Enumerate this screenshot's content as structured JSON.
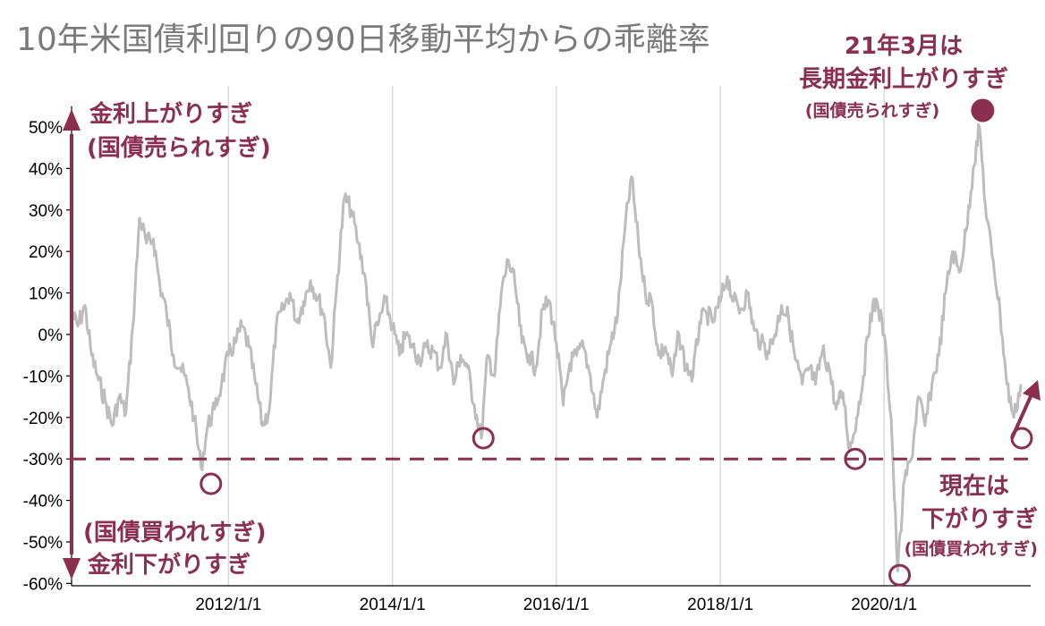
{
  "colors": {
    "series": "#bdbdbd",
    "accent": "#8b2f50",
    "grid": "#d9d9d9",
    "axis": "#000000",
    "title": "#7a7a7a"
  },
  "chart_data": {
    "type": "line",
    "title": "10年米国債利回りの90日移動平均からの乖離率",
    "xlabel": "",
    "ylabel": "",
    "xlim": [
      "2010-02-01",
      "2021-10-15"
    ],
    "ylim": [
      -60,
      55
    ],
    "y_ticks": [
      50,
      40,
      30,
      20,
      10,
      0,
      -10,
      -20,
      -30,
      -40,
      -50,
      -60
    ],
    "y_tick_labels": [
      "50%",
      "40%",
      "30%",
      "20%",
      "10%",
      "0%",
      "-10%",
      "-20%",
      "-30%",
      "-40%",
      "-50%",
      "-60%"
    ],
    "x_ticks": [
      "2012-01-01",
      "2014-01-01",
      "2016-01-01",
      "2018-01-01",
      "2020-01-01"
    ],
    "x_tick_labels": [
      "2012/1/1",
      "2014/1/1",
      "2016/1/1",
      "2018/1/1",
      "2020/1/1"
    ],
    "grid": "vertical",
    "reference_line": {
      "value": -30,
      "style": "dashed"
    },
    "series": [
      {
        "values": [
          [
            "2010-02-01",
            5
          ],
          [
            "2010-03-01",
            2
          ],
          [
            "2010-04-01",
            7
          ],
          [
            "2010-05-01",
            -5
          ],
          [
            "2010-06-01",
            -11
          ],
          [
            "2010-07-01",
            -16
          ],
          [
            "2010-08-01",
            -22
          ],
          [
            "2010-09-01",
            -15
          ],
          [
            "2010-10-01",
            -19
          ],
          [
            "2010-11-01",
            2
          ],
          [
            "2010-12-01",
            28
          ],
          [
            "2011-01-01",
            22
          ],
          [
            "2011-02-01",
            23
          ],
          [
            "2011-03-01",
            12
          ],
          [
            "2011-04-01",
            5
          ],
          [
            "2011-05-01",
            -5
          ],
          [
            "2011-06-01",
            -8
          ],
          [
            "2011-07-01",
            -12
          ],
          [
            "2011-08-01",
            -20
          ],
          [
            "2011-09-01",
            -32
          ],
          [
            "2011-10-01",
            -22
          ],
          [
            "2011-11-01",
            -18
          ],
          [
            "2011-12-01",
            -12
          ],
          [
            "2012-01-01",
            -5
          ],
          [
            "2012-02-01",
            -2
          ],
          [
            "2012-03-01",
            2
          ],
          [
            "2012-04-01",
            -3
          ],
          [
            "2012-05-01",
            -12
          ],
          [
            "2012-06-01",
            -22
          ],
          [
            "2012-07-01",
            -18
          ],
          [
            "2012-08-01",
            2
          ],
          [
            "2012-09-01",
            6
          ],
          [
            "2012-10-01",
            10
          ],
          [
            "2012-11-01",
            3
          ],
          [
            "2012-12-01",
            8
          ],
          [
            "2013-01-01",
            13
          ],
          [
            "2013-02-01",
            9
          ],
          [
            "2013-03-01",
            5
          ],
          [
            "2013-04-01",
            -8
          ],
          [
            "2013-05-01",
            14
          ],
          [
            "2013-06-01",
            33
          ],
          [
            "2013-07-01",
            30
          ],
          [
            "2013-08-01",
            22
          ],
          [
            "2013-09-01",
            14
          ],
          [
            "2013-10-01",
            -2
          ],
          [
            "2013-11-01",
            3
          ],
          [
            "2013-12-01",
            8
          ],
          [
            "2014-01-01",
            2
          ],
          [
            "2014-02-01",
            -5
          ],
          [
            "2014-03-01",
            0
          ],
          [
            "2014-04-01",
            -3
          ],
          [
            "2014-05-01",
            -6
          ],
          [
            "2014-06-01",
            -3
          ],
          [
            "2014-07-01",
            -4
          ],
          [
            "2014-08-01",
            -8
          ],
          [
            "2014-09-01",
            0
          ],
          [
            "2014-10-01",
            -12
          ],
          [
            "2014-11-01",
            -5
          ],
          [
            "2014-12-01",
            -8
          ],
          [
            "2015-01-01",
            -17
          ],
          [
            "2015-02-01",
            -25
          ],
          [
            "2015-03-01",
            -5
          ],
          [
            "2015-04-01",
            -10
          ],
          [
            "2015-05-01",
            10
          ],
          [
            "2015-06-01",
            18
          ],
          [
            "2015-07-01",
            12
          ],
          [
            "2015-08-01",
            -2
          ],
          [
            "2015-09-01",
            -5
          ],
          [
            "2015-10-01",
            -8
          ],
          [
            "2015-11-01",
            6
          ],
          [
            "2015-12-01",
            8
          ],
          [
            "2016-01-01",
            -2
          ],
          [
            "2016-02-01",
            -17
          ],
          [
            "2016-03-01",
            -7
          ],
          [
            "2016-04-01",
            -5
          ],
          [
            "2016-05-01",
            -3
          ],
          [
            "2016-06-01",
            -10
          ],
          [
            "2016-07-01",
            -20
          ],
          [
            "2016-08-01",
            -10
          ],
          [
            "2016-09-01",
            -2
          ],
          [
            "2016-10-01",
            5
          ],
          [
            "2016-11-01",
            25
          ],
          [
            "2016-12-01",
            38
          ],
          [
            "2017-01-01",
            22
          ],
          [
            "2017-02-01",
            10
          ],
          [
            "2017-03-01",
            8
          ],
          [
            "2017-04-01",
            -5
          ],
          [
            "2017-05-01",
            -3
          ],
          [
            "2017-06-01",
            -10
          ],
          [
            "2017-07-01",
            0
          ],
          [
            "2017-08-01",
            -8
          ],
          [
            "2017-09-01",
            -10
          ],
          [
            "2017-10-01",
            3
          ],
          [
            "2017-11-01",
            5
          ],
          [
            "2017-12-01",
            3
          ],
          [
            "2018-01-01",
            8
          ],
          [
            "2018-02-01",
            14
          ],
          [
            "2018-03-01",
            8
          ],
          [
            "2018-04-01",
            6
          ],
          [
            "2018-05-01",
            10
          ],
          [
            "2018-06-01",
            1
          ],
          [
            "2018-07-01",
            -2
          ],
          [
            "2018-08-01",
            -4
          ],
          [
            "2018-09-01",
            0
          ],
          [
            "2018-10-01",
            7
          ],
          [
            "2018-11-01",
            4
          ],
          [
            "2018-12-01",
            -6
          ],
          [
            "2019-01-01",
            -12
          ],
          [
            "2019-02-01",
            -8
          ],
          [
            "2019-03-01",
            -12
          ],
          [
            "2019-04-01",
            -4
          ],
          [
            "2019-05-01",
            -8
          ],
          [
            "2019-06-01",
            -18
          ],
          [
            "2019-07-01",
            -14
          ],
          [
            "2019-08-01",
            -28
          ],
          [
            "2019-09-01",
            -20
          ],
          [
            "2019-10-01",
            -10
          ],
          [
            "2019-11-01",
            5
          ],
          [
            "2019-12-01",
            8
          ],
          [
            "2020-01-01",
            0
          ],
          [
            "2020-02-01",
            -20
          ],
          [
            "2020-03-01",
            -57
          ],
          [
            "2020-04-01",
            -35
          ],
          [
            "2020-05-01",
            -30
          ],
          [
            "2020-06-01",
            -15
          ],
          [
            "2020-07-01",
            -22
          ],
          [
            "2020-08-01",
            -12
          ],
          [
            "2020-09-01",
            -5
          ],
          [
            "2020-10-01",
            10
          ],
          [
            "2020-11-01",
            20
          ],
          [
            "2020-12-01",
            15
          ],
          [
            "2021-01-01",
            25
          ],
          [
            "2021-02-01",
            40
          ],
          [
            "2021-03-01",
            50
          ],
          [
            "2021-04-01",
            28
          ],
          [
            "2021-05-01",
            18
          ],
          [
            "2021-06-01",
            5
          ],
          [
            "2021-07-01",
            -12
          ],
          [
            "2021-08-01",
            -20
          ],
          [
            "2021-09-01",
            -12
          ]
        ]
      }
    ],
    "annotations": {
      "top_left": [
        "金利上がりすぎ",
        "(国債売られすぎ)"
      ],
      "bottom_left": [
        "(国債買われすぎ)",
        "金利下がりすぎ"
      ],
      "peak": [
        "21年3月は",
        "長期金利上がりすぎ",
        "(国債売られすぎ)"
      ],
      "current": [
        "現在は",
        "下がりすぎ",
        "(国債買われすぎ)"
      ]
    },
    "peak_marker": {
      "x": "2021-03-15",
      "y": 54
    },
    "circle_markers": [
      {
        "x": "2011-10-15",
        "y": -36
      },
      {
        "x": "2015-02-10",
        "y": -25
      },
      {
        "x": "2019-08-25",
        "y": -30
      },
      {
        "x": "2020-03-10",
        "y": -58
      },
      {
        "x": "2021-09-05",
        "y": -25
      }
    ]
  }
}
